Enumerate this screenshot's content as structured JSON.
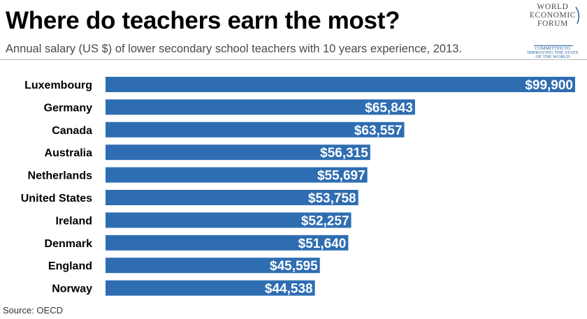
{
  "header": {
    "title": "Where do teachers earn the most?",
    "subtitle": "Annual salary (US $) of lower secondary school teachers with 10 years experience, 2013."
  },
  "logo": {
    "line1": "WORLD",
    "line2": "ECONOMIC",
    "line3": "FORUM",
    "tagline1": "COMMITTED TO",
    "tagline2": "IMPROVING THE STATE",
    "tagline3": "OF THE WORLD"
  },
  "source": "Source: OECD",
  "colors": {
    "bar": "#2e6db2",
    "bar_label": "#ffffff",
    "logo_accent": "#1f5f9c"
  },
  "chart_data": {
    "type": "bar",
    "orientation": "horizontal",
    "title": "Where do teachers earn the most?",
    "subtitle": "Annual salary (US $) of lower secondary school teachers with 10 years experience, 2013.",
    "categories": [
      "Luxembourg",
      "Germany",
      "Canada",
      "Australia",
      "Netherlands",
      "United States",
      "Ireland",
      "Denmark",
      "England",
      "Norway"
    ],
    "values": [
      99900,
      65843,
      63557,
      56315,
      55697,
      53758,
      52257,
      51640,
      45595,
      44538
    ],
    "value_labels": [
      "$99,900",
      "$65,843",
      "$63,557",
      "$56,315",
      "$55,697",
      "$53,758",
      "$52,257",
      "$51,640",
      "$45,595",
      "$44,538"
    ],
    "xlim": [
      0,
      99900
    ],
    "grid": false,
    "legend": "none"
  }
}
